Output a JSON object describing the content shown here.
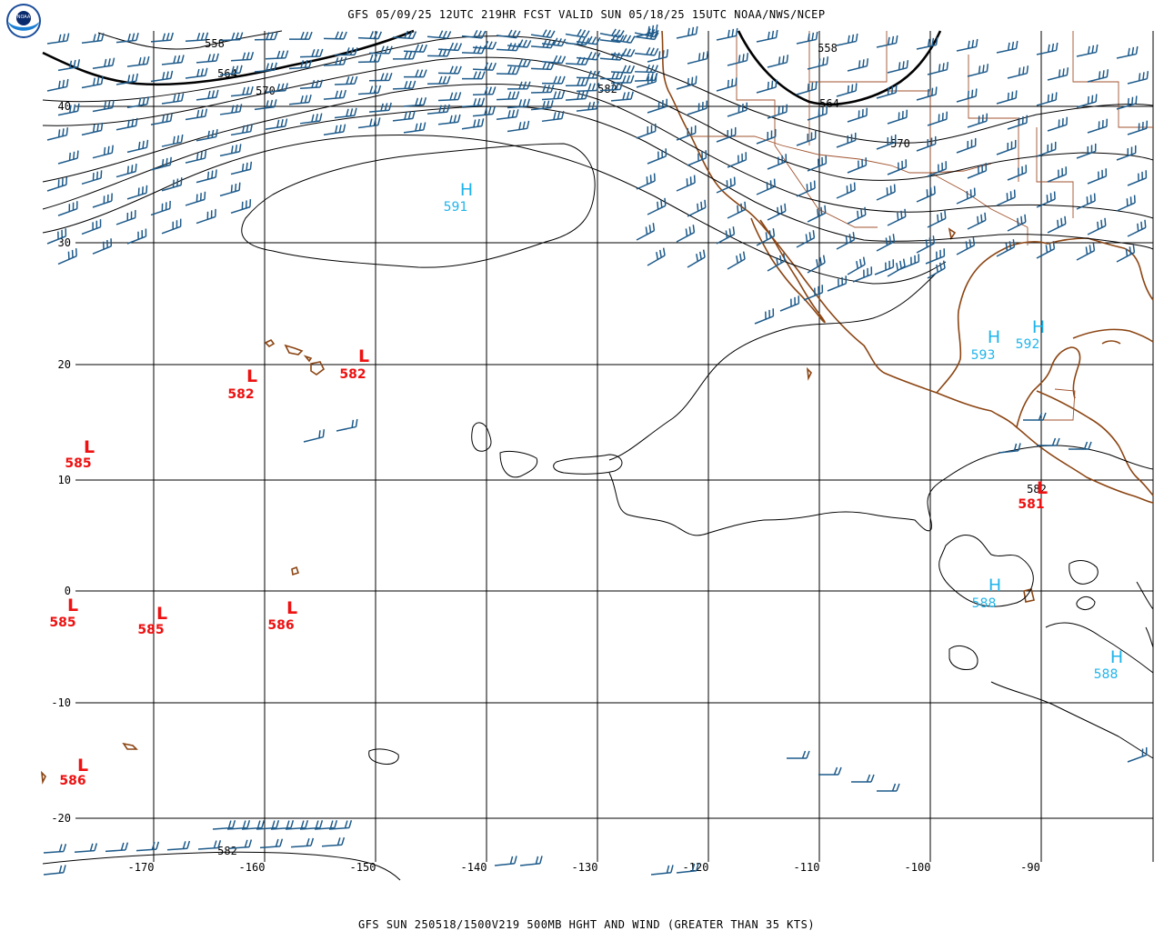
{
  "header": {
    "top_title": "GFS 05/09/25 12UTC 219HR FCST VALID SUN 05/18/25 15UTC NOAA/NWS/NCEP",
    "bottom_title": "GFS SUN 250518/1500V219 500MB HGHT AND WIND (GREATER THAN 35 KTS)",
    "logo_text": "NOAA"
  },
  "axes": {
    "lat_labels": [
      "40",
      "30",
      "20",
      "10",
      "0",
      "-10",
      "-20"
    ],
    "lon_labels": [
      "-170",
      "-160",
      "-150",
      "-140",
      "-130",
      "-120",
      "-110",
      "-100",
      "-90"
    ]
  },
  "contour_labels": [
    "558",
    "564",
    "570",
    "582",
    "558",
    "564",
    "570",
    "582",
    "582"
  ],
  "highs": [
    {
      "letter": "H",
      "value": "591"
    },
    {
      "letter": "H",
      "value": "593"
    },
    {
      "letter": "H",
      "value": "592"
    },
    {
      "letter": "H",
      "value": "588"
    },
    {
      "letter": "H",
      "value": "588"
    }
  ],
  "lows": [
    {
      "letter": "L",
      "value": "582"
    },
    {
      "letter": "L",
      "value": "582"
    },
    {
      "letter": "L",
      "value": "585"
    },
    {
      "letter": "L",
      "value": "585"
    },
    {
      "letter": "L",
      "value": "585"
    },
    {
      "letter": "L",
      "value": "586"
    },
    {
      "letter": "L",
      "value": "586"
    },
    {
      "letter": "L",
      "value": "581"
    }
  ],
  "colors": {
    "high": "#1fb4ea",
    "low": "#ee1111",
    "barb": "#1d5a8a",
    "coast": "#8b4513",
    "contour": "#000000"
  },
  "legend_icon": "noaa-logo"
}
